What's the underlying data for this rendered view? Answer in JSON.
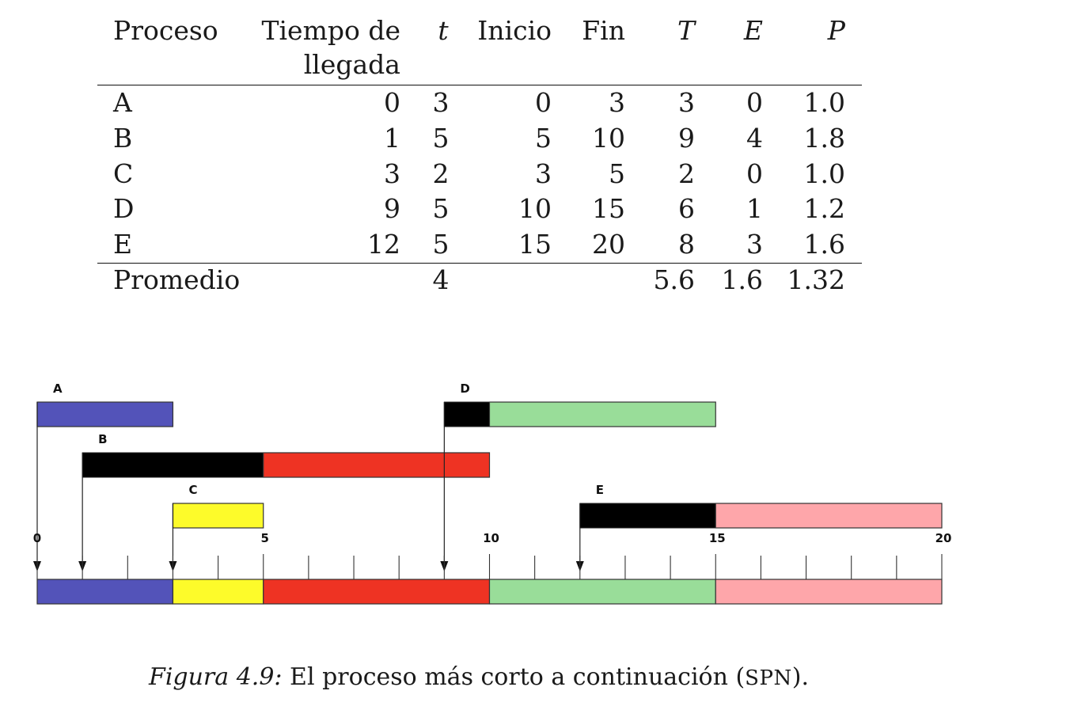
{
  "table": {
    "headers": {
      "proceso": "Proceso",
      "llegada_line1": "Tiempo de",
      "llegada_line2": "llegada",
      "t": "t",
      "inicio": "Inicio",
      "fin": "Fin",
      "T": "T",
      "E": "E",
      "P": "P"
    },
    "rows": [
      {
        "proceso": "A",
        "llegada": "0",
        "t": "3",
        "inicio": "0",
        "fin": "3",
        "T": "3",
        "E": "0",
        "P": "1.0"
      },
      {
        "proceso": "B",
        "llegada": "1",
        "t": "5",
        "inicio": "5",
        "fin": "10",
        "T": "9",
        "E": "4",
        "P": "1.8"
      },
      {
        "proceso": "C",
        "llegada": "3",
        "t": "2",
        "inicio": "3",
        "fin": "5",
        "T": "2",
        "E": "0",
        "P": "1.0"
      },
      {
        "proceso": "D",
        "llegada": "9",
        "t": "5",
        "inicio": "10",
        "fin": "15",
        "T": "6",
        "E": "1",
        "P": "1.2"
      },
      {
        "proceso": "E",
        "llegada": "12",
        "t": "5",
        "inicio": "15",
        "fin": "20",
        "T": "8",
        "E": "3",
        "P": "1.6"
      }
    ],
    "footer": {
      "label": "Promedio",
      "t": "4",
      "T": "5.6",
      "E": "1.6",
      "P": "1.32"
    }
  },
  "gantt": {
    "axis_ticks": [
      0,
      5,
      10,
      15,
      20
    ],
    "processes": [
      {
        "name": "A",
        "arrival": 0,
        "start": 0,
        "end": 3,
        "color": "#5353b9"
      },
      {
        "name": "B",
        "arrival": 1,
        "start": 5,
        "end": 10,
        "color": "#ee3323"
      },
      {
        "name": "C",
        "arrival": 3,
        "start": 3,
        "end": 5,
        "color": "#fdfb2a"
      },
      {
        "name": "D",
        "arrival": 9,
        "start": 10,
        "end": 15,
        "color": "#99dd99"
      },
      {
        "name": "E",
        "arrival": 12,
        "start": 15,
        "end": 20,
        "color": "#fea6aa"
      }
    ],
    "wait_color": "#000000"
  },
  "caption": {
    "label": "Figura 4.9:",
    "text_before": " El proceso más corto a continuación (",
    "abbr": "SPN",
    "text_after": ")."
  }
}
